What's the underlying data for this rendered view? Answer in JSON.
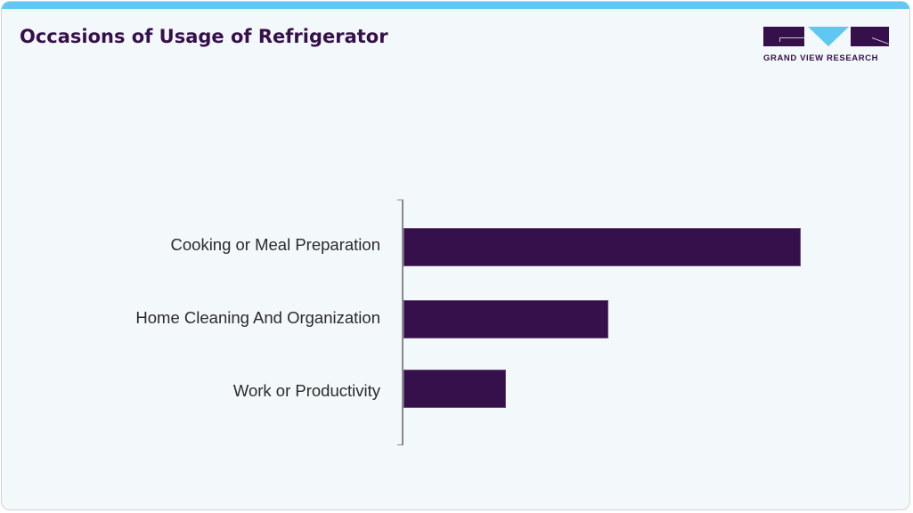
{
  "header": {
    "title": "Occasions of Usage of Refrigerator",
    "logo_text": "GRAND VIEW RESEARCH",
    "accent_color": "#5ec8f2",
    "brand_color": "#36104a"
  },
  "chart_data": {
    "type": "bar",
    "orientation": "horizontal",
    "title": "Occasions of Usage of Refrigerator",
    "xlabel": "",
    "ylabel": "",
    "categories": [
      "Cooking or Meal Preparation",
      "Home Cleaning And Organization",
      "Work or Productivity"
    ],
    "values": [
      100,
      51.6,
      25.8
    ],
    "value_note": "relative lengths, no numeric labels shown; normalized to largest = 100",
    "bar_color": "#36104a",
    "grid": false,
    "legend": null,
    "xlim": [
      0,
      100
    ]
  }
}
